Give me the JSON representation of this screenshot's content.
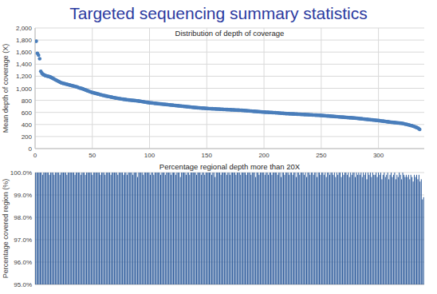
{
  "title": "Targeted sequencing summary statistics",
  "chart_data": [
    {
      "type": "scatter",
      "title": "Distribution of depth of coverage",
      "y_label": "Mean depth of coverage (X)",
      "color": "#4a7ebb",
      "marker": "circle",
      "grid": true,
      "xlim": [
        0,
        340
      ],
      "xticks": [
        0,
        50,
        100,
        150,
        200,
        250,
        300
      ],
      "ylim": [
        0,
        2000
      ],
      "yticks": [
        0,
        200,
        400,
        600,
        800,
        {
          "value": 1000,
          "label": "1,000"
        },
        {
          "value": 1200,
          "label": "1,200"
        },
        {
          "value": 1400,
          "label": "1,400"
        },
        {
          "value": 1600,
          "label": "1,600"
        },
        {
          "value": 1800,
          "label": "1,800"
        },
        {
          "value": 2000,
          "label": "2,000"
        }
      ],
      "x": [
        1,
        2,
        3,
        4,
        5,
        6,
        7,
        8,
        9,
        10,
        11,
        12,
        13,
        14,
        15,
        16,
        17,
        18,
        19,
        20,
        21,
        22,
        23,
        24,
        25,
        26,
        27,
        28,
        29,
        30,
        31,
        32,
        33,
        34,
        35,
        36,
        37,
        38,
        39,
        40,
        41,
        42,
        43,
        44,
        45,
        46,
        47,
        48,
        49,
        50,
        51,
        52,
        53,
        54,
        55,
        56,
        57,
        58,
        59,
        60,
        61,
        62,
        63,
        64,
        65,
        66,
        67,
        68,
        69,
        70,
        71,
        72,
        73,
        74,
        75,
        76,
        77,
        78,
        79,
        80,
        81,
        82,
        83,
        84,
        85,
        86,
        87,
        88,
        89,
        90,
        91,
        92,
        93,
        94,
        95,
        96,
        97,
        98,
        99,
        100,
        101,
        102,
        103,
        104,
        105,
        106,
        107,
        108,
        109,
        110,
        111,
        112,
        113,
        114,
        115,
        116,
        117,
        118,
        119,
        120,
        121,
        122,
        123,
        124,
        125,
        126,
        127,
        128,
        129,
        130,
        131,
        132,
        133,
        134,
        135,
        136,
        137,
        138,
        139,
        140,
        141,
        142,
        143,
        144,
        145,
        146,
        147,
        148,
        149,
        150,
        151,
        152,
        153,
        154,
        155,
        156,
        157,
        158,
        159,
        160,
        161,
        162,
        163,
        164,
        165,
        166,
        167,
        168,
        169,
        170,
        171,
        172,
        173,
        174,
        175,
        176,
        177,
        178,
        179,
        180,
        181,
        182,
        183,
        184,
        185,
        186,
        187,
        188,
        189,
        190,
        191,
        192,
        193,
        194,
        195,
        196,
        197,
        198,
        199,
        200,
        201,
        202,
        203,
        204,
        205,
        206,
        207,
        208,
        209,
        210,
        211,
        212,
        213,
        214,
        215,
        216,
        217,
        218,
        219,
        220,
        221,
        222,
        223,
        224,
        225,
        226,
        227,
        228,
        229,
        230,
        231,
        232,
        233,
        234,
        235,
        236,
        237,
        238,
        239,
        240,
        241,
        242,
        243,
        244,
        245,
        246,
        247,
        248,
        249,
        250,
        251,
        252,
        253,
        254,
        255,
        256,
        257,
        258,
        259,
        260,
        261,
        262,
        263,
        264,
        265,
        266,
        267,
        268,
        269,
        270,
        271,
        272,
        273,
        274,
        275,
        276,
        277,
        278,
        279,
        280,
        281,
        282,
        283,
        284,
        285,
        286,
        287,
        288,
        289,
        290,
        291,
        292,
        293,
        294,
        295,
        296,
        297,
        298,
        299,
        300,
        301,
        302,
        303,
        304,
        305,
        306,
        307,
        308,
        309,
        310,
        311,
        312,
        313,
        314,
        315,
        316,
        317,
        318,
        319,
        320,
        321,
        322,
        323,
        324,
        325,
        326,
        327,
        328,
        329,
        330,
        331,
        332,
        333,
        334,
        335,
        336
      ],
      "values": [
        1780,
        1580,
        1550,
        1490,
        1280,
        1250,
        1230,
        1220,
        1210,
        1205,
        1200,
        1195,
        1190,
        1180,
        1170,
        1160,
        1150,
        1140,
        1130,
        1120,
        1110,
        1100,
        1090,
        1085,
        1080,
        1075,
        1070,
        1065,
        1060,
        1055,
        1050,
        1045,
        1040,
        1035,
        1030,
        1025,
        1020,
        1010,
        1005,
        1000,
        995,
        988,
        980,
        972,
        965,
        958,
        950,
        943,
        936,
        930,
        925,
        920,
        915,
        910,
        905,
        900,
        895,
        890,
        885,
        880,
        876,
        872,
        868,
        864,
        860,
        856,
        852,
        848,
        844,
        840,
        837,
        834,
        831,
        828,
        825,
        822,
        819,
        816,
        813,
        810,
        808,
        806,
        804,
        802,
        800,
        798,
        796,
        794,
        792,
        790,
        787,
        784,
        781,
        778,
        775,
        772,
        769,
        766,
        763,
        760,
        758,
        756,
        754,
        752,
        750,
        748,
        746,
        744,
        742,
        740,
        738,
        736,
        734,
        732,
        730,
        728,
        726,
        724,
        722,
        720,
        718,
        716,
        714,
        712,
        710,
        708,
        706,
        704,
        702,
        700,
        698,
        696,
        694,
        692,
        690,
        688,
        686,
        684,
        682,
        680,
        679,
        677,
        676,
        674,
        673,
        671,
        670,
        668,
        667,
        665,
        664,
        663,
        662,
        661,
        660,
        659,
        658,
        657,
        656,
        655,
        654,
        653,
        652,
        651,
        650,
        649,
        648,
        647,
        646,
        645,
        644,
        643,
        642,
        641,
        640,
        639,
        638,
        637,
        636,
        635,
        634,
        632,
        631,
        629,
        628,
        626,
        625,
        623,
        622,
        620,
        618,
        617,
        615,
        614,
        612,
        611,
        609,
        608,
        606,
        605,
        604,
        603,
        602,
        601,
        600,
        599,
        598,
        597,
        596,
        595,
        593,
        592,
        590,
        589,
        587,
        586,
        584,
        583,
        581,
        580,
        579,
        578,
        577,
        576,
        575,
        574,
        573,
        572,
        571,
        570,
        569,
        568,
        567,
        566,
        565,
        564,
        563,
        562,
        561,
        560,
        559,
        558,
        557,
        556,
        555,
        554,
        553,
        552,
        551,
        550,
        548,
        547,
        545,
        544,
        542,
        541,
        539,
        538,
        536,
        535,
        533,
        532,
        530,
        529,
        527,
        526,
        524,
        523,
        521,
        520,
        518,
        517,
        515,
        514,
        512,
        511,
        509,
        508,
        506,
        505,
        503,
        501,
        499,
        497,
        495,
        493,
        491,
        489,
        487,
        485,
        483,
        481,
        479,
        477,
        475,
        473,
        471,
        469,
        467,
        465,
        462,
        460,
        457,
        455,
        452,
        450,
        447,
        445,
        442,
        440,
        438,
        436,
        434,
        432,
        430,
        428,
        426,
        424,
        422,
        420,
        417,
        413,
        408,
        404,
        400,
        395,
        390,
        385,
        380,
        375,
        368,
        360,
        352,
        345,
        335,
        318
      ]
    },
    {
      "type": "bar",
      "title": "Percentage regional depth more than 20X",
      "y_label": "Percentage covered region (%)",
      "color": "#2c5a9a",
      "grid": true,
      "tick_labels": "y",
      "ylim": [
        95,
        100
      ],
      "yticks": [
        {
          "value": 95,
          "label": "95.0%"
        },
        {
          "value": 96,
          "label": "96.0%"
        },
        {
          "value": 97,
          "label": "97.0%"
        },
        {
          "value": 98,
          "label": "98.0%"
        },
        {
          "value": 99,
          "label": "99.0%"
        },
        {
          "value": 100,
          "label": "100.0%"
        }
      ],
      "categories": [
        null,
        null,
        null,
        null,
        null,
        null,
        null,
        null,
        null,
        null,
        null,
        null,
        null,
        null,
        null,
        null,
        null,
        null,
        null,
        null,
        null,
        null,
        null,
        null,
        null,
        null,
        null,
        null,
        null,
        null,
        null,
        null,
        null,
        null,
        null,
        null,
        null,
        null,
        null,
        null,
        null,
        null,
        null,
        null,
        null,
        null,
        null,
        null,
        null,
        null,
        null,
        null,
        null,
        null,
        null,
        null,
        null,
        null,
        null,
        null,
        null,
        null,
        null,
        null,
        null,
        null,
        null,
        null,
        null,
        null,
        null,
        null,
        null,
        null,
        null,
        null,
        null,
        null,
        null,
        null,
        null,
        null,
        null,
        null,
        null,
        null,
        null,
        null,
        null,
        null,
        null,
        null,
        null,
        null,
        null,
        null,
        null,
        null,
        null,
        null,
        null,
        null,
        null,
        null,
        null,
        null,
        null,
        null,
        null,
        null,
        null,
        null,
        null,
        null,
        null,
        null,
        null,
        null,
        null,
        null,
        null,
        null,
        null,
        null,
        null,
        null,
        null,
        null,
        null,
        null,
        null,
        null,
        null,
        null,
        null,
        null,
        null,
        null,
        null,
        null,
        null,
        null,
        null,
        null,
        null,
        null,
        null,
        null,
        null,
        null,
        null,
        null,
        null,
        null,
        null,
        null,
        null,
        null,
        null,
        null,
        null,
        null,
        null,
        null,
        null,
        null,
        null,
        null,
        null,
        null,
        null,
        null,
        null,
        null,
        null,
        null,
        null,
        null,
        null,
        null,
        null,
        null,
        null,
        null,
        null,
        null,
        null,
        null,
        null,
        null,
        null,
        null,
        null,
        null,
        null,
        null,
        null,
        null,
        null,
        null,
        null,
        null,
        null,
        null,
        null,
        null,
        null,
        null,
        null,
        null,
        null,
        null,
        null,
        null,
        null,
        null,
        null,
        null,
        null,
        null,
        null,
        null,
        null,
        null,
        null,
        null,
        null,
        null,
        null,
        null,
        null,
        null,
        null,
        null,
        null,
        null,
        null,
        null,
        null,
        null,
        null,
        null,
        null,
        null,
        null,
        null,
        null,
        null,
        null,
        null,
        null,
        null,
        null,
        null,
        null,
        null,
        null,
        null,
        null,
        null,
        null,
        null,
        null,
        null,
        null,
        null,
        null,
        null,
        null,
        null,
        null,
        null,
        null,
        null,
        null,
        null,
        null,
        null,
        null,
        null,
        null,
        null,
        null,
        null,
        null,
        null,
        null,
        null,
        null,
        null,
        null,
        null,
        null,
        null,
        null,
        null,
        null,
        null,
        null,
        null,
        null,
        null,
        null,
        null,
        null,
        null,
        null,
        null,
        null,
        null,
        null,
        null,
        null,
        null,
        null,
        null,
        null,
        null,
        null,
        null,
        null,
        null,
        null,
        null,
        null,
        null,
        null,
        null,
        null,
        null,
        null,
        null,
        null,
        null,
        null,
        null
      ],
      "values": [
        100,
        100,
        100,
        100,
        100,
        100,
        99.9,
        100,
        100,
        100,
        100,
        100,
        99.9,
        100,
        100,
        100,
        99.9,
        100,
        100,
        100,
        100,
        99.9,
        100,
        100,
        100,
        100,
        100,
        99.9,
        100,
        100,
        100,
        100,
        100,
        100,
        99.9,
        100,
        100,
        100,
        100,
        99.9,
        100,
        100,
        100,
        99.9,
        100,
        100,
        100,
        100,
        100,
        99.9,
        100,
        100,
        100,
        100,
        100,
        100,
        99.9,
        100,
        100,
        100,
        99.9,
        100,
        100,
        100,
        100,
        99.9,
        100,
        100,
        100,
        100,
        100,
        99.9,
        100,
        100,
        100,
        100,
        99.9,
        100,
        100,
        99.9,
        100,
        100,
        100,
        100,
        99.9,
        100,
        100,
        100,
        99.8,
        100,
        100,
        100,
        100,
        99.9,
        100,
        100,
        100,
        100,
        100,
        99.9,
        100,
        100,
        99.9,
        100,
        100,
        100,
        100,
        100,
        99.9,
        100,
        100,
        100,
        99.9,
        100,
        100,
        100,
        100,
        99.9,
        100,
        100,
        100,
        99.9,
        100,
        100,
        100,
        99.8,
        100,
        100,
        100,
        100,
        99.9,
        100,
        100,
        99.9,
        100,
        100,
        100,
        100,
        100,
        99.9,
        100,
        100,
        100,
        99.9,
        100,
        100,
        99.9,
        100,
        100,
        100,
        100,
        100,
        99.9,
        100,
        100,
        99.8,
        100,
        100,
        100,
        100,
        99.9,
        100,
        100,
        100,
        100,
        99.9,
        100,
        100,
        99.9,
        100,
        100,
        100,
        100,
        99.9,
        100,
        100,
        100,
        99.9,
        100,
        100,
        100,
        100,
        99.9,
        100,
        100,
        100,
        99.9,
        100,
        100,
        100,
        99.8,
        100,
        100,
        99.9,
        100,
        100,
        100,
        100,
        99.9,
        100,
        100,
        99.9,
        100,
        100,
        99.9,
        100,
        100,
        100,
        100,
        99.9,
        100,
        100,
        99.8,
        100,
        100,
        99.9,
        100,
        100,
        100,
        99.9,
        100,
        100,
        99.9,
        100,
        100,
        99.8,
        100,
        100,
        99.9,
        100,
        100,
        100,
        99.9,
        100,
        99.8,
        100,
        100,
        99.9,
        100,
        100,
        99.9,
        100,
        100,
        99.8,
        100,
        100,
        99.9,
        100,
        100,
        99.9,
        100,
        99.8,
        100,
        100,
        99.9,
        100,
        100,
        99.9,
        100,
        99.8,
        100,
        99.9,
        100,
        100,
        99.8,
        100,
        99.9,
        100,
        100,
        99.9,
        100,
        99.8,
        100,
        99.9,
        100,
        100,
        99.8,
        100,
        99.9,
        100,
        99.9,
        100,
        99.8,
        100,
        99.9,
        100,
        99.7,
        100,
        99.9,
        100,
        99.8,
        100,
        99.9,
        99.9,
        100,
        99.8,
        100,
        99.9,
        100,
        99.7,
        99.9,
        100,
        99.8,
        99.9,
        100,
        99.7,
        99.9,
        100,
        99.8,
        99.9,
        100,
        99.7,
        99.9,
        99.8,
        100,
        99.9,
        99.7,
        100,
        99.9,
        99.8,
        99.9,
        99.8,
        99.9,
        99.7,
        99.9,
        99.8,
        99.6,
        99.9,
        99.8,
        99.9,
        99.7,
        99.9,
        99.6,
        99.7,
        98.8,
        98.9
      ]
    }
  ]
}
